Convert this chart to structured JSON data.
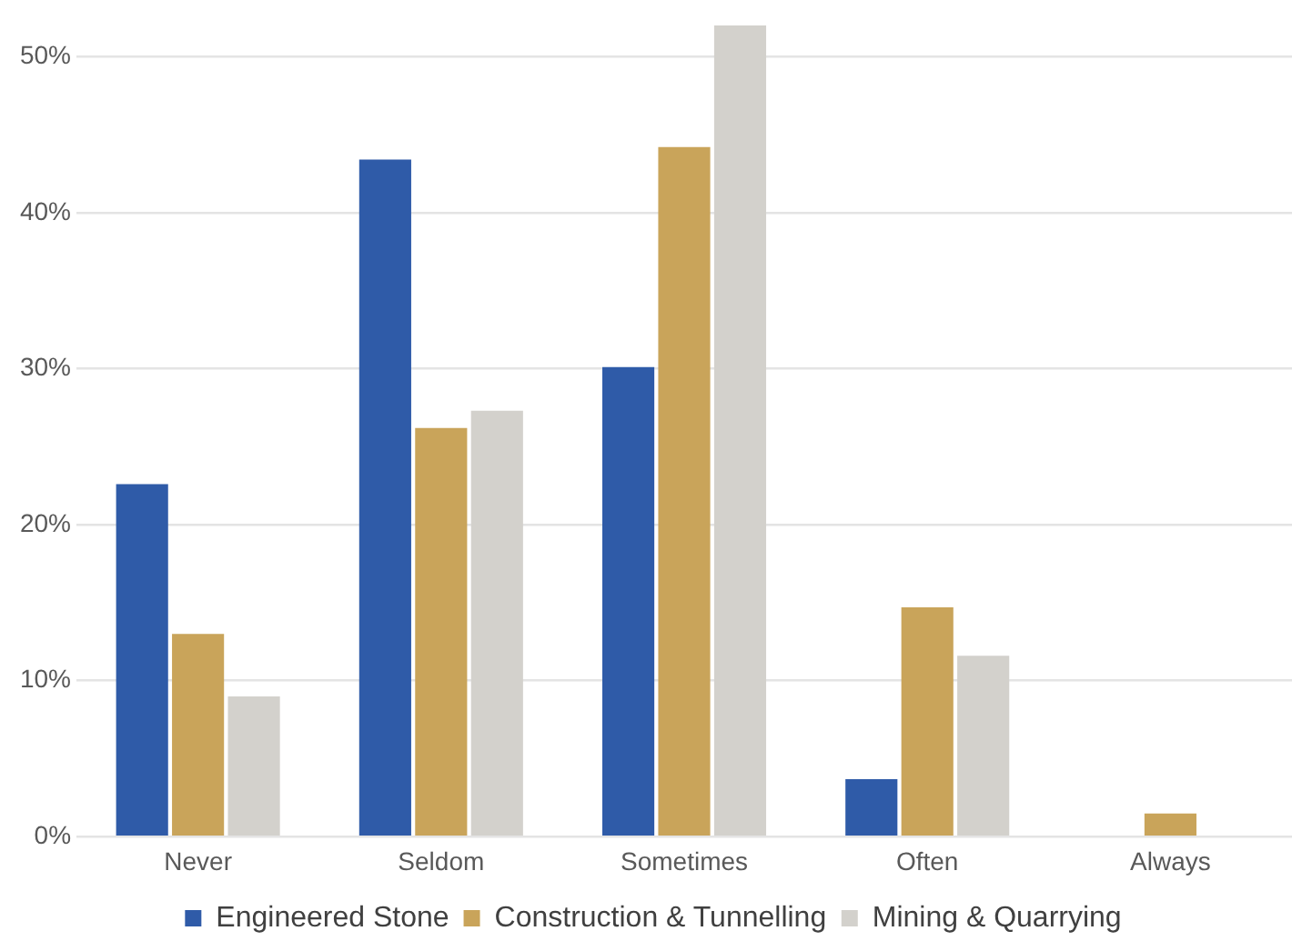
{
  "chart_data": {
    "type": "bar",
    "categories": [
      "Never",
      "Seldom",
      "Sometimes",
      "Often",
      "Always"
    ],
    "series": [
      {
        "name": "Engineered Stone",
        "color": "#2f5ba8",
        "values": [
          22.6,
          43.4,
          30.1,
          3.7,
          0
        ]
      },
      {
        "name": "Construction & Tunnelling",
        "color": "#c9a45a",
        "values": [
          13.0,
          26.2,
          44.2,
          14.7,
          1.5
        ]
      },
      {
        "name": "Mining & Quarrying",
        "color": "#d3d1cc",
        "values": [
          9.0,
          27.3,
          52,
          11.6,
          0
        ]
      }
    ],
    "ylim": [
      0,
      52.3
    ],
    "yticks": [
      {
        "value": 0,
        "label": "0%"
      },
      {
        "value": 10,
        "label": "10%"
      },
      {
        "value": 20,
        "label": "20%"
      },
      {
        "value": 30,
        "label": "30%"
      },
      {
        "value": 40,
        "label": "40%"
      },
      {
        "value": 50,
        "label": "50%"
      }
    ],
    "grid": "y",
    "legend": "bottom"
  }
}
